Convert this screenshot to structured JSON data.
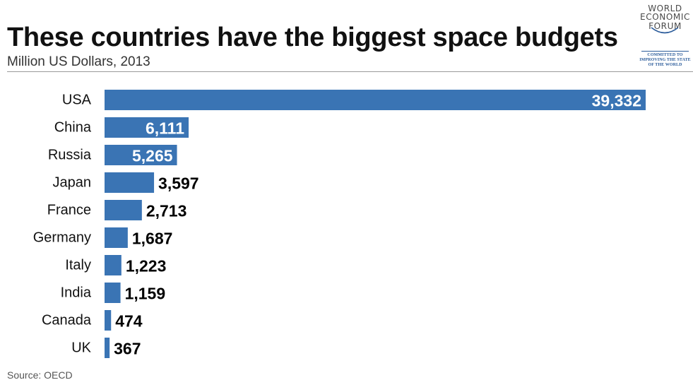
{
  "header": {
    "title": "These countries have the biggest space budgets",
    "subtitle": "Million US Dollars, 2013"
  },
  "logo": {
    "lines": [
      "WORLD",
      "ECONOMIC",
      "FORUM"
    ],
    "tagline": [
      "COMMITTED TO",
      "IMPROVING THE STATE",
      "OF THE WORLD"
    ],
    "color": "#2a5b9a"
  },
  "footer": {
    "source": "Source: OECD"
  },
  "colors": {
    "bar": "#3a74b4",
    "label_inside": "#ffffff",
    "label_outside": "#000000"
  },
  "chart_data": {
    "type": "bar",
    "orientation": "horizontal",
    "categories": [
      "USA",
      "China",
      "Russia",
      "Japan",
      "France",
      "Germany",
      "Italy",
      "India",
      "Canada",
      "UK"
    ],
    "values": [
      39332,
      6111,
      5265,
      3597,
      2713,
      1687,
      1223,
      1159,
      474,
      367
    ],
    "value_labels": [
      "39,332",
      "6,111",
      "5,265",
      "3,597",
      "2,713",
      "1,687",
      "1,223",
      "1,159",
      "474",
      "367"
    ],
    "title": "These countries have the biggest space budgets",
    "subtitle": "Million US Dollars, 2013",
    "xlabel": "",
    "ylabel": "",
    "grid": false,
    "legend": "none"
  }
}
